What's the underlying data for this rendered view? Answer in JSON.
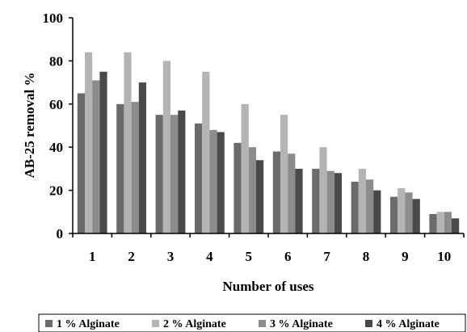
{
  "chart_data": {
    "type": "bar",
    "xlabel": "Number of uses",
    "ylabel": "AB-25  removal %",
    "ylim": [
      0,
      100
    ],
    "yticks": [
      0,
      20,
      40,
      60,
      80,
      100
    ],
    "categories": [
      "1",
      "2",
      "3",
      "4",
      "5",
      "6",
      "7",
      "8",
      "9",
      "10"
    ],
    "legend_position": "bottom",
    "grid": false,
    "series": [
      {
        "name": "1 % Alginate",
        "color": "#6b6b6b",
        "values": [
          65,
          60,
          55,
          51,
          42,
          38,
          30,
          24,
          17,
          9
        ]
      },
      {
        "name": "2 % Alginate",
        "color": "#b4b4b4",
        "values": [
          84,
          84,
          80,
          75,
          60,
          55,
          40,
          30,
          21,
          10
        ]
      },
      {
        "name": "3 % Alginate",
        "color": "#8c8c8c",
        "values": [
          71,
          61,
          55,
          48,
          40,
          37,
          29,
          25,
          19,
          10
        ]
      },
      {
        "name": "4 % Alginate",
        "color": "#4a4a4a",
        "values": [
          75,
          70,
          57,
          47,
          34,
          30,
          28,
          20,
          16,
          7
        ]
      }
    ]
  }
}
